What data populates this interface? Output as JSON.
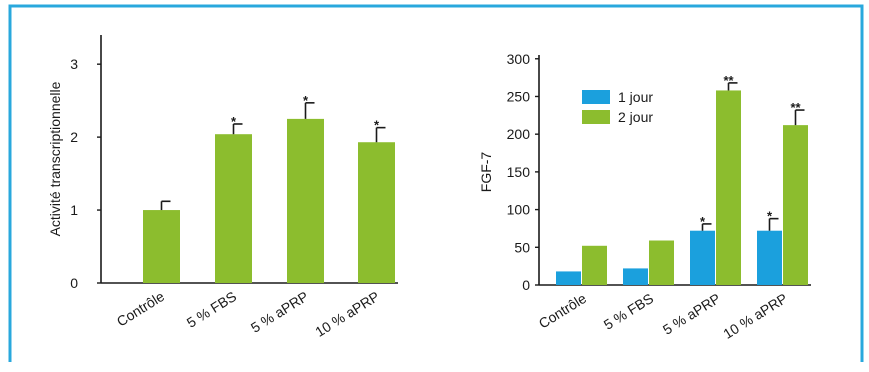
{
  "colors": {
    "frame": "#29a8dd",
    "green": "#8cbd2e",
    "blue": "#1ba0dd",
    "axis": "#1a1a1a",
    "errorbar": "#1a1a1a"
  },
  "chart_data": [
    {
      "type": "bar",
      "ylabel": "Activité transcriptionnelle",
      "xlabel": "",
      "ylim": [
        0,
        3.4
      ],
      "yticks": [
        0,
        1,
        2,
        3
      ],
      "grid": false,
      "categories": [
        "Contrôle",
        "5 % FBS",
        "5 % aPRP",
        "10 % aPRP"
      ],
      "series": [
        {
          "color": "#8cbd2e",
          "values": [
            1.0,
            2.04,
            2.25,
            1.93
          ],
          "errors": [
            0.12,
            0.14,
            0.22,
            0.2
          ],
          "annotations": [
            "",
            "*",
            "*",
            "*"
          ]
        }
      ]
    },
    {
      "type": "bar",
      "ylabel": "FGF-7",
      "xlabel": "",
      "ylim": [
        0,
        305
      ],
      "yticks": [
        0,
        50,
        100,
        150,
        200,
        250,
        300
      ],
      "grid": false,
      "legend_position": "top-left",
      "categories": [
        "Contrôle",
        "5 % FBS",
        "5 % aPRP",
        "10 % aPRP"
      ],
      "series": [
        {
          "name": "1 jour",
          "color": "#1ba0dd",
          "values": [
            18,
            22,
            72,
            72
          ],
          "errors": [
            0,
            0,
            9,
            16
          ],
          "annotations": [
            "",
            "",
            "*",
            "*"
          ]
        },
        {
          "name": "2 jour",
          "color": "#8cbd2e",
          "values": [
            52,
            59,
            258,
            212
          ],
          "errors": [
            0,
            0,
            10,
            20
          ],
          "annotations": [
            "",
            "",
            "**",
            "**"
          ]
        }
      ]
    }
  ]
}
